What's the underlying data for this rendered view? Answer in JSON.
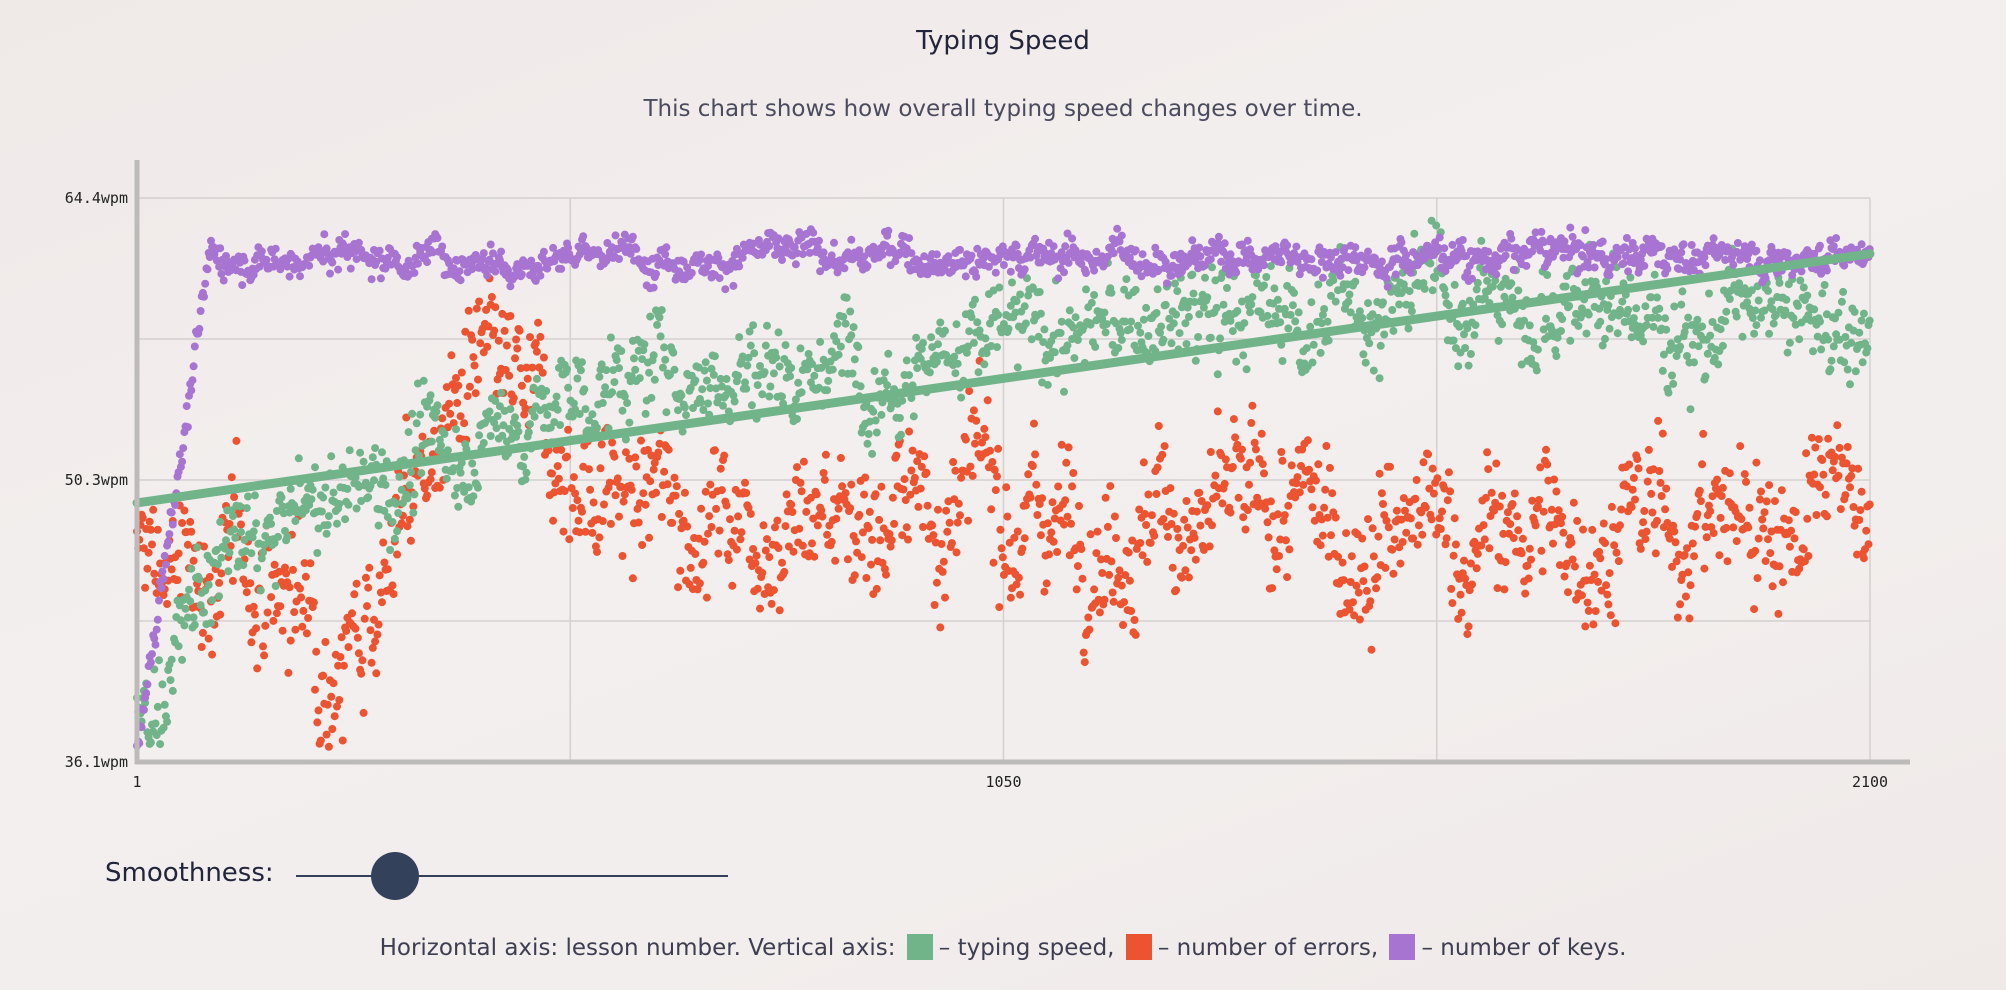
{
  "title": "Typing Speed",
  "subtitle": "This chart shows how overall typing speed changes over time.",
  "smoothness": {
    "label": "Smoothness:",
    "value": 0.23
  },
  "legend": {
    "prefix": "Horizontal axis: lesson number. Vertical axis:",
    "items": [
      {
        "label": "– typing speed,",
        "color": "#72b48a"
      },
      {
        "label": "– number of errors,",
        "color": "#ec5330"
      },
      {
        "label": "– number of keys.",
        "color": "#a874d2"
      }
    ]
  },
  "chart_data": {
    "type": "scatter",
    "title": "Typing Speed",
    "xlabel": "lesson number",
    "ylabel": "",
    "xlim": [
      1,
      2100
    ],
    "ylim": [
      36.1,
      64.4
    ],
    "x_ticks": [
      "1",
      "1050",
      "2100"
    ],
    "y_ticks": [
      "64.4wpm",
      "50.3wpm",
      "36.1wpm"
    ],
    "grid": true,
    "series": [
      {
        "name": "typing speed",
        "color": "#72b48a",
        "approx_trend": [
          [
            1,
            37.5
          ],
          [
            100,
            46
          ],
          [
            300,
            50.5
          ],
          [
            600,
            55.5
          ],
          [
            1100,
            57.5
          ],
          [
            1600,
            59.5
          ],
          [
            2100,
            57.5
          ]
        ],
        "approx_spread": 2.2
      },
      {
        "name": "number of errors",
        "color": "#ec5330",
        "approx_trend": [
          [
            1,
            46
          ],
          [
            150,
            45.5
          ],
          [
            250,
            42.5
          ],
          [
            400,
            55
          ],
          [
            600,
            49
          ],
          [
            1100,
            49
          ],
          [
            1600,
            47
          ],
          [
            2100,
            49
          ]
        ],
        "approx_spread": 3.2
      },
      {
        "name": "number of keys",
        "color": "#a874d2",
        "approx_trend": [
          [
            1,
            36.5
          ],
          [
            40,
            48
          ],
          [
            90,
            61.5
          ],
          [
            2100,
            61.6
          ]
        ],
        "approx_spread": 0.8
      },
      {
        "name": "typing speed trend",
        "color": "#72b48a",
        "type": "line",
        "x": [
          1,
          2100
        ],
        "y": [
          49.1,
          61.6
        ]
      }
    ]
  }
}
